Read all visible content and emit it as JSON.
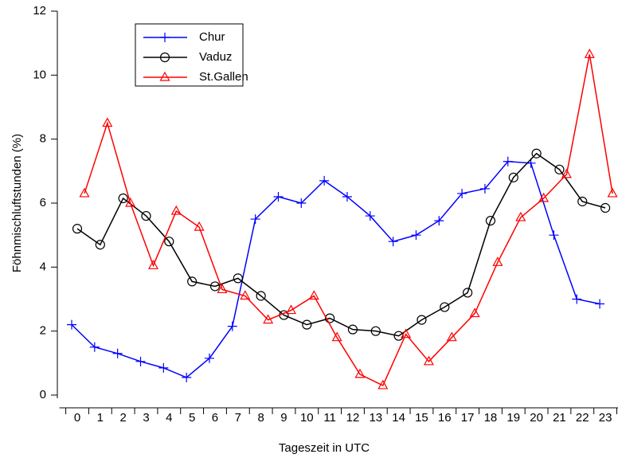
{
  "chart_data": {
    "type": "line",
    "xlabel": "Tageszeit in UTC",
    "ylabel": "Föhnmischluftstunden (%)",
    "categories": [
      "0",
      "1",
      "2",
      "3",
      "4",
      "5",
      "6",
      "7",
      "8",
      "9",
      "10",
      "11",
      "12",
      "13",
      "14",
      "15",
      "16",
      "17",
      "18",
      "19",
      "20",
      "21",
      "22",
      "23"
    ],
    "ylim": [
      0,
      12
    ],
    "yticks": [
      0,
      2,
      4,
      6,
      8,
      10,
      12
    ],
    "legend": "upper left",
    "series": [
      {
        "name": "Chur",
        "color": "#0000ff",
        "marker": "plus",
        "values": [
          2.2,
          1.5,
          1.3,
          1.05,
          0.85,
          0.55,
          1.15,
          2.15,
          5.5,
          6.2,
          6.0,
          6.7,
          6.2,
          5.6,
          4.8,
          5.0,
          5.45,
          6.3,
          6.45,
          7.3,
          7.25,
          5.0,
          3.0,
          2.85
        ]
      },
      {
        "name": "Vaduz",
        "color": "#000000",
        "marker": "circle",
        "values": [
          5.2,
          4.7,
          6.15,
          5.6,
          4.8,
          3.55,
          3.4,
          3.65,
          3.1,
          2.5,
          2.2,
          2.4,
          2.05,
          2.0,
          1.85,
          2.35,
          2.75,
          3.2,
          5.45,
          6.8,
          7.55,
          7.05,
          6.05,
          5.85
        ]
      },
      {
        "name": "St.Gallen",
        "color": "#ff0000",
        "marker": "triangle",
        "values": [
          6.3,
          8.5,
          6.0,
          4.05,
          5.75,
          5.25,
          3.3,
          3.1,
          2.35,
          2.65,
          3.1,
          1.8,
          0.65,
          0.3,
          1.9,
          1.05,
          1.8,
          2.55,
          4.15,
          5.55,
          6.15,
          6.9,
          10.65,
          6.3
        ]
      }
    ]
  }
}
